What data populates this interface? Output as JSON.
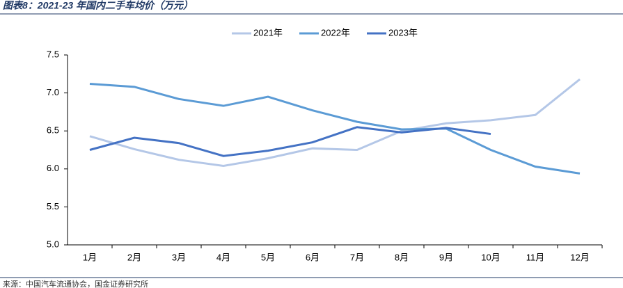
{
  "chart_data": {
    "type": "line",
    "title": "图表8：2021-23 年国内二手车均价（万元）",
    "source": "来源：中国汽车流通协会，国金证券研究所",
    "categories": [
      "1月",
      "2月",
      "3月",
      "4月",
      "5月",
      "6月",
      "7月",
      "8月",
      "9月",
      "10月",
      "11月",
      "12月"
    ],
    "series": [
      {
        "name": "2021年",
        "color": "#b4c7e7",
        "values": [
          6.43,
          6.26,
          6.12,
          6.04,
          6.14,
          6.27,
          6.25,
          6.5,
          6.6,
          6.64,
          6.71,
          7.18
        ]
      },
      {
        "name": "2022年",
        "color": "#5b9bd5",
        "values": [
          7.12,
          7.08,
          6.92,
          6.83,
          6.95,
          6.77,
          6.62,
          6.52,
          6.53,
          6.25,
          6.03,
          5.94
        ]
      },
      {
        "name": "2023年",
        "color": "#4472c4",
        "values": [
          6.25,
          6.41,
          6.34,
          6.17,
          6.24,
          6.35,
          6.55,
          6.48,
          6.54,
          6.46,
          null,
          null
        ]
      }
    ],
    "ylim": [
      5,
      7.5
    ],
    "yticks": [
      {
        "value": 5,
        "label": "5.0"
      },
      {
        "value": 5.5,
        "label": "5.5"
      },
      {
        "value": 6,
        "label": "6.0"
      },
      {
        "value": 6.5,
        "label": "6.5"
      },
      {
        "value": 7,
        "label": "7.0"
      },
      {
        "value": 7.5,
        "label": "7.5"
      }
    ],
    "legend": "top"
  }
}
